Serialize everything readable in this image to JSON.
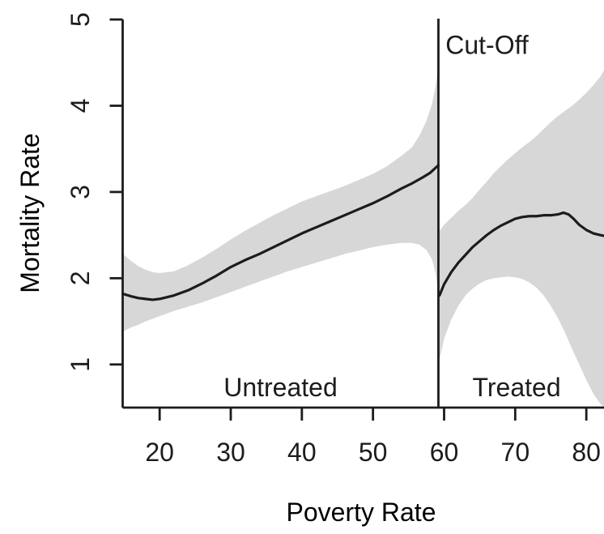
{
  "figure": {
    "background": "#ffffff",
    "band_color": "#d7d7d7",
    "line_color": "#1c1c1c",
    "axis_color": "#1c1c1c",
    "text_color": "#1c1c1c"
  },
  "chart_data": {
    "type": "line",
    "title": "",
    "xlabel": "Poverty Rate",
    "ylabel": "Mortality Rate",
    "xlim": [
      14.8,
      82.6
    ],
    "ylim": [
      0.5,
      5.01
    ],
    "x_ticks": [
      20,
      30,
      40,
      50,
      60,
      70,
      80
    ],
    "y_ticks": [
      1,
      2,
      3,
      4,
      5
    ],
    "grid": false,
    "legend": "none",
    "cutoff_x": 59.2,
    "annotations": [
      {
        "text": "Cut-Off",
        "x": 60.2,
        "y": 4.6,
        "anchor": "start"
      },
      {
        "text": "Untreated",
        "x": 37.0,
        "y": 0.63,
        "anchor": "middle"
      },
      {
        "text": "Treated",
        "x": 70.2,
        "y": 0.63,
        "anchor": "middle"
      }
    ],
    "series": [
      {
        "name": "untreated-fit",
        "x": [
          14.8,
          16,
          17,
          18,
          19,
          20,
          21,
          22,
          24,
          26,
          28,
          30,
          32,
          34,
          36,
          38,
          40,
          42,
          44,
          46,
          48,
          50,
          52,
          54,
          55.5,
          57,
          58,
          58.8,
          59.2
        ],
        "y": [
          1.82,
          1.79,
          1.77,
          1.76,
          1.75,
          1.76,
          1.78,
          1.8,
          1.86,
          1.94,
          2.03,
          2.13,
          2.21,
          2.28,
          2.36,
          2.44,
          2.52,
          2.59,
          2.66,
          2.73,
          2.8,
          2.87,
          2.95,
          3.04,
          3.1,
          3.17,
          3.22,
          3.28,
          3.31
        ]
      },
      {
        "name": "treated-fit",
        "x": [
          59.35,
          60,
          61,
          62,
          63,
          64,
          65,
          66,
          67,
          68,
          69,
          70,
          71,
          72,
          73,
          74,
          75,
          76,
          76.8,
          77.5,
          78.2,
          79,
          80,
          81,
          82,
          82.6
        ],
        "y": [
          1.8,
          1.93,
          2.07,
          2.18,
          2.27,
          2.36,
          2.43,
          2.5,
          2.56,
          2.61,
          2.65,
          2.69,
          2.71,
          2.72,
          2.72,
          2.73,
          2.73,
          2.74,
          2.76,
          2.74,
          2.69,
          2.62,
          2.56,
          2.52,
          2.5,
          2.49
        ]
      }
    ],
    "bands": [
      {
        "name": "untreated-confidence-band",
        "x": [
          14.8,
          16,
          17,
          18,
          19,
          20,
          22,
          24,
          26,
          28,
          30,
          32,
          34,
          36,
          38,
          40,
          42,
          44,
          46,
          48,
          50,
          52,
          54,
          55.5,
          56.5,
          57.5,
          58.3,
          58.8,
          59.2
        ],
        "upper": [
          2.28,
          2.2,
          2.14,
          2.1,
          2.07,
          2.06,
          2.08,
          2.15,
          2.24,
          2.34,
          2.45,
          2.55,
          2.64,
          2.73,
          2.81,
          2.89,
          2.95,
          3.01,
          3.07,
          3.14,
          3.21,
          3.3,
          3.42,
          3.52,
          3.65,
          3.82,
          4.02,
          4.22,
          4.45
        ],
        "lower": [
          1.38,
          1.43,
          1.46,
          1.5,
          1.53,
          1.56,
          1.62,
          1.67,
          1.72,
          1.78,
          1.84,
          1.9,
          1.96,
          2.02,
          2.08,
          2.13,
          2.18,
          2.23,
          2.28,
          2.32,
          2.36,
          2.39,
          2.41,
          2.41,
          2.39,
          2.33,
          2.22,
          2.06,
          1.84
        ]
      },
      {
        "name": "treated-confidence-band",
        "x": [
          59.35,
          60,
          61,
          62,
          63,
          64,
          65,
          66,
          67,
          68,
          69,
          70,
          71,
          72,
          73,
          74,
          75,
          76,
          77,
          78,
          79,
          80,
          81,
          82,
          82.6
        ],
        "upper": [
          2.55,
          2.62,
          2.7,
          2.78,
          2.85,
          2.93,
          3.03,
          3.12,
          3.22,
          3.3,
          3.38,
          3.45,
          3.52,
          3.58,
          3.65,
          3.73,
          3.81,
          3.88,
          3.94,
          4.0,
          4.07,
          4.15,
          4.24,
          4.34,
          4.43
        ],
        "lower": [
          1.05,
          1.3,
          1.52,
          1.68,
          1.8,
          1.88,
          1.94,
          1.98,
          2.0,
          2.01,
          2.02,
          2.01,
          1.99,
          1.95,
          1.89,
          1.8,
          1.68,
          1.54,
          1.37,
          1.18,
          1.0,
          0.82,
          0.66,
          0.54,
          0.5
        ]
      }
    ]
  }
}
